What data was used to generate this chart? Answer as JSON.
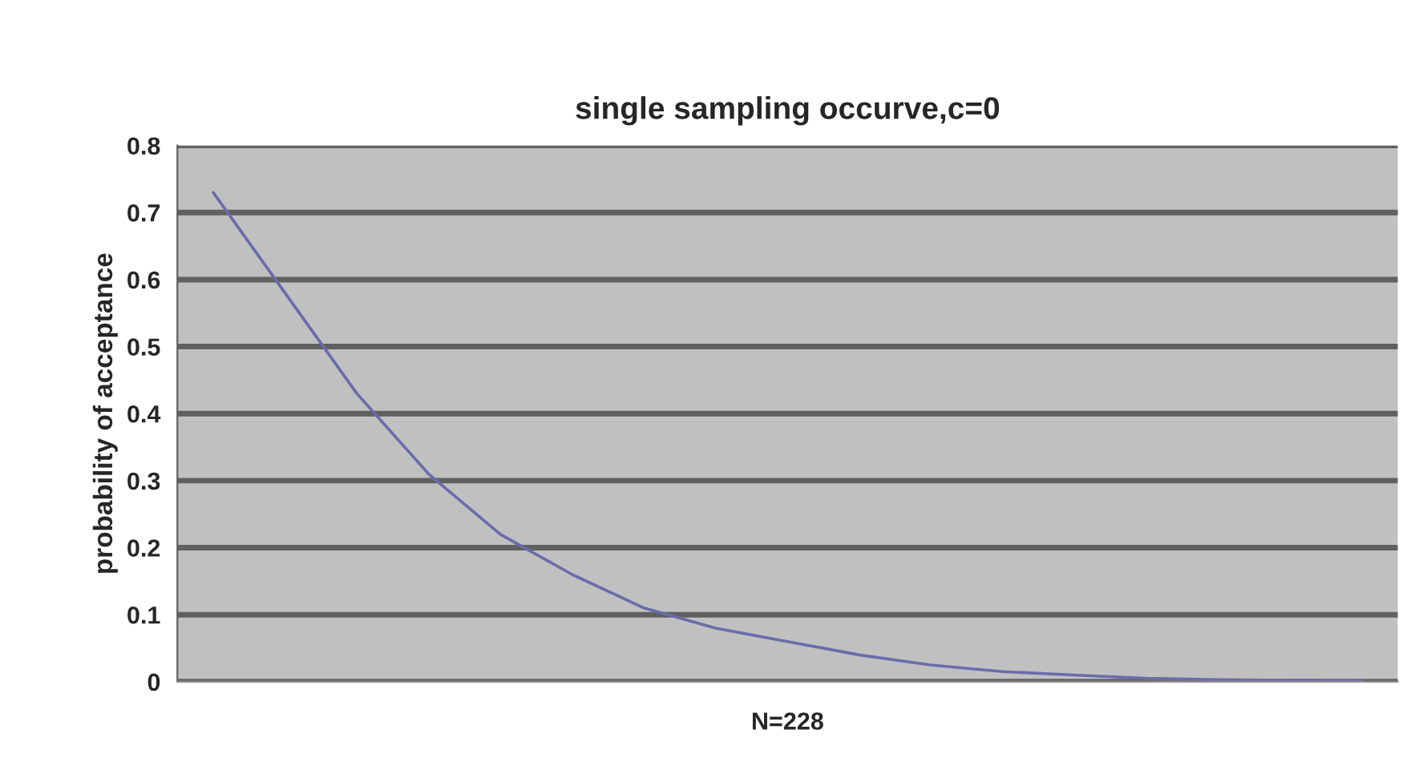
{
  "chart_data": {
    "type": "line",
    "title": "single sampling occurve,c=0",
    "xlabel": "N=228",
    "ylabel": "probability of acceptance",
    "categories": [
      null,
      null,
      null,
      null,
      null,
      null,
      null,
      null,
      null,
      null,
      null,
      null,
      null,
      null,
      null,
      null,
      null
    ],
    "series": [
      {
        "color": "#6b6bab",
        "values": [
          0.73,
          0.58,
          0.43,
          0.31,
          0.22,
          0.16,
          0.11,
          0.08,
          0.06,
          0.04,
          0.025,
          0.015,
          0.01,
          0.005,
          0.003,
          0.002,
          0.001
        ]
      }
    ],
    "ylim": [
      0,
      0.8
    ],
    "yticks": [
      0,
      0.1,
      0.2,
      0.3,
      0.4,
      0.5,
      0.6,
      0.7,
      0.8
    ],
    "grid": "y",
    "marker": "none",
    "line_style": "solid"
  }
}
